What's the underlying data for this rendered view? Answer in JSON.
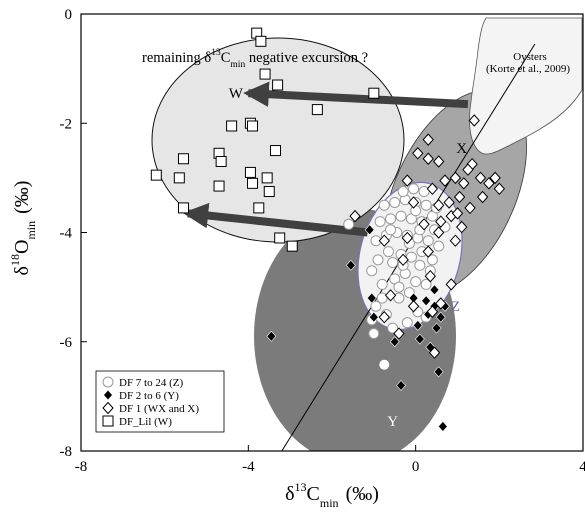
{
  "chart_data": {
    "type": "scatter",
    "xlabel": {
      "main": "δ",
      "sup": "13",
      "mid": "C",
      "sub": "min",
      "unit": "(‰)"
    },
    "ylabel": {
      "main": "δ",
      "sup": "18",
      "mid": "O",
      "sub": "min",
      "unit": "(‰)"
    },
    "xlim": [
      -8,
      4
    ],
    "ylim": [
      -8,
      0
    ],
    "xticks": [
      -8,
      -4,
      0,
      4
    ],
    "yticks": [
      0,
      -2,
      -4,
      -6,
      -8
    ],
    "xtick_labels": [
      "-8",
      "-4",
      "0",
      "4"
    ],
    "ytick_labels": [
      "0",
      "-2",
      "-4",
      "-6",
      "-8"
    ],
    "grid": false,
    "legend_position": "bottom-left",
    "colors": {
      "ellipse_W": "#e6e6e6",
      "ellipse_X": "#a6a6a6",
      "ellipse_Y": "#7b7b7b",
      "ellipse_Z": "#f2f2f2",
      "ellipse_Z_stroke": "#7b74b8",
      "oysters": "#f4f4f4",
      "arrow": "#404040"
    },
    "regions": [
      {
        "label": "W",
        "label_xy": [
          -4.3,
          -1.45
        ],
        "label_color": "#000000"
      },
      {
        "label": "X",
        "label_xy": [
          1.1,
          -2.45
        ],
        "label_color": "#000000"
      },
      {
        "label": "Y",
        "label_xy": [
          -0.55,
          -7.45
        ],
        "label_color": "#ffffff"
      },
      {
        "label": "Z",
        "label_xy": [
          0.95,
          -5.35
        ],
        "label_color": "#6a62b0"
      }
    ],
    "annotations": {
      "oysters_line1": "Oysters",
      "oysters_line2": "(Korte et al., 2009)",
      "excursion": {
        "pre": "remaining δ",
        "sup": "13",
        "mid": "C",
        "sub": "min",
        "post": " negative excursion ?"
      }
    },
    "arrows": [
      {
        "from": [
          1.25,
          -1.65
        ],
        "to": [
          -4.0,
          -1.45
        ]
      },
      {
        "from": [
          -1.15,
          -4.0
        ],
        "to": [
          -5.45,
          -3.65
        ]
      }
    ],
    "reference_line": {
      "from": [
        -3.2,
        -8.0
      ],
      "to": [
        2.85,
        -0.55
      ]
    },
    "series": [
      {
        "name": "DF 7 to 24 (Z)",
        "marker": "circle-open",
        "points": [
          [
            -1.0,
            -5.85
          ],
          [
            -1.05,
            -5.6
          ],
          [
            -0.95,
            -5.35
          ],
          [
            -0.7,
            -5.5
          ],
          [
            -0.55,
            -5.75
          ],
          [
            -0.4,
            -5.2
          ],
          [
            -0.2,
            -5.65
          ],
          [
            0.05,
            -5.45
          ],
          [
            0.25,
            -5.55
          ],
          [
            -0.8,
            -4.95
          ],
          [
            -0.5,
            -4.85
          ],
          [
            -0.25,
            -4.75
          ],
          [
            0.0,
            -4.9
          ],
          [
            0.25,
            -4.95
          ],
          [
            -1.05,
            -4.7
          ],
          [
            -0.9,
            -4.5
          ],
          [
            -0.65,
            -4.35
          ],
          [
            -0.35,
            -4.4
          ],
          [
            -0.1,
            -4.45
          ],
          [
            0.15,
            -4.35
          ],
          [
            0.4,
            -4.5
          ],
          [
            -0.95,
            -4.15
          ],
          [
            -0.7,
            -4.05
          ],
          [
            -0.45,
            -4.0
          ],
          [
            -0.2,
            -4.05
          ],
          [
            0.05,
            -4.1
          ],
          [
            0.3,
            -4.15
          ],
          [
            0.55,
            -4.25
          ],
          [
            -0.85,
            -3.8
          ],
          [
            -0.6,
            -3.75
          ],
          [
            -0.35,
            -3.7
          ],
          [
            -0.1,
            -3.75
          ],
          [
            0.15,
            -3.8
          ],
          [
            0.4,
            -3.7
          ],
          [
            -0.75,
            -3.5
          ],
          [
            -0.5,
            -3.45
          ],
          [
            -0.25,
            -3.4
          ],
          [
            0.0,
            -3.45
          ],
          [
            0.25,
            -3.5
          ],
          [
            0.5,
            -3.55
          ],
          [
            0.7,
            -3.9
          ],
          [
            -0.3,
            -3.25
          ],
          [
            -0.05,
            -3.2
          ],
          [
            0.2,
            -3.25
          ],
          [
            -1.6,
            -3.85
          ],
          [
            -0.15,
            -4.2
          ],
          [
            0.1,
            -4.6
          ],
          [
            -0.55,
            -4.55
          ],
          [
            0.45,
            -3.95
          ],
          [
            -0.4,
            -5.0
          ],
          [
            -0.15,
            -5.1
          ],
          [
            0.35,
            -4.7
          ],
          [
            -0.6,
            -3.95
          ],
          [
            0.1,
            -3.95
          ],
          [
            -0.8,
            -5.2
          ],
          [
            0.0,
            -3.6
          ],
          [
            -0.3,
            -4.6
          ]
        ]
      },
      {
        "name": "DF 2 to 6 (Y)",
        "marker": "diamond-filled",
        "points": [
          [
            -3.45,
            -5.9
          ],
          [
            -1.1,
            -3.95
          ],
          [
            -1.55,
            -4.6
          ],
          [
            -1.05,
            -5.2
          ],
          [
            -1.0,
            -5.55
          ],
          [
            -0.5,
            -6.0
          ],
          [
            -0.35,
            -6.8
          ],
          [
            -0.05,
            -5.2
          ],
          [
            0.05,
            -5.7
          ],
          [
            0.1,
            -5.95
          ],
          [
            0.25,
            -5.25
          ],
          [
            0.3,
            -5.5
          ],
          [
            0.35,
            -6.1
          ],
          [
            0.45,
            -5.05
          ],
          [
            0.45,
            -5.35
          ],
          [
            0.5,
            -5.75
          ],
          [
            0.6,
            -5.55
          ],
          [
            0.7,
            -5.35
          ],
          [
            0.55,
            -6.55
          ],
          [
            0.65,
            -7.55
          ]
        ]
      },
      {
        "name": "DF 1 (WX and X)",
        "marker": "diamond-open",
        "points": [
          [
            0.3,
            -2.3
          ],
          [
            0.3,
            -2.65
          ],
          [
            0.05,
            -2.55
          ],
          [
            0.55,
            -2.7
          ],
          [
            -0.2,
            -3.05
          ],
          [
            0.4,
            -3.2
          ],
          [
            0.7,
            -3.05
          ],
          [
            0.95,
            -3.0
          ],
          [
            1.15,
            -3.1
          ],
          [
            1.35,
            -2.75
          ],
          [
            1.4,
            -1.95
          ],
          [
            1.25,
            -2.85
          ],
          [
            1.55,
            -3.0
          ],
          [
            1.6,
            -3.35
          ],
          [
            1.9,
            -3.0
          ],
          [
            2.0,
            -3.2
          ],
          [
            1.75,
            -3.1
          ],
          [
            -0.05,
            -3.45
          ],
          [
            0.55,
            -3.5
          ],
          [
            0.8,
            -3.45
          ],
          [
            1.05,
            -3.35
          ],
          [
            1.3,
            -3.55
          ],
          [
            0.6,
            -3.8
          ],
          [
            0.85,
            -3.7
          ],
          [
            1.1,
            -3.9
          ],
          [
            0.55,
            -4.0
          ],
          [
            0.3,
            -4.35
          ],
          [
            0.35,
            -4.8
          ],
          [
            0.85,
            -4.95
          ],
          [
            -1.45,
            -3.7
          ],
          [
            -0.75,
            -4.15
          ],
          [
            -0.3,
            -4.5
          ],
          [
            -0.6,
            -5.15
          ],
          [
            -0.75,
            -5.55
          ],
          [
            -0.05,
            -5.35
          ],
          [
            0.4,
            -5.45
          ],
          [
            0.6,
            -5.3
          ],
          [
            -0.4,
            -5.85
          ],
          [
            0.45,
            -6.2
          ],
          [
            1.0,
            -3.65
          ],
          [
            0.2,
            -3.85
          ],
          [
            -0.2,
            -4.1
          ],
          [
            0.95,
            -4.15
          ]
        ]
      },
      {
        "name": "DF_Lil (W)",
        "marker": "square-open",
        "points": [
          [
            -3.8,
            -0.35
          ],
          [
            -3.7,
            -0.5
          ],
          [
            -3.6,
            -1.1
          ],
          [
            -3.3,
            -1.3
          ],
          [
            -2.35,
            -1.75
          ],
          [
            -1.0,
            -1.45
          ],
          [
            -4.4,
            -2.05
          ],
          [
            -3.95,
            -2.0
          ],
          [
            -3.9,
            -2.05
          ],
          [
            -5.55,
            -2.65
          ],
          [
            -4.7,
            -2.55
          ],
          [
            -4.65,
            -2.7
          ],
          [
            -6.2,
            -2.95
          ],
          [
            -5.65,
            -3.0
          ],
          [
            -4.7,
            -3.15
          ],
          [
            -3.95,
            -2.9
          ],
          [
            -3.9,
            -3.1
          ],
          [
            -3.55,
            -3.0
          ],
          [
            -3.5,
            -3.25
          ],
          [
            -3.35,
            -2.5
          ],
          [
            -3.75,
            -3.55
          ],
          [
            -5.55,
            -3.55
          ],
          [
            -3.25,
            -4.1
          ],
          [
            -2.95,
            -4.25
          ]
        ]
      }
    ],
    "legend": {
      "items": [
        {
          "marker": "circle-open",
          "label": "DF 7 to 24 (Z)"
        },
        {
          "marker": "diamond-filled",
          "label": "DF 2 to 6 (Y)"
        },
        {
          "marker": "diamond-open",
          "label": "DF 1 (WX and X)"
        },
        {
          "marker": "square-open",
          "label": "DF_Lil (W)"
        }
      ]
    }
  }
}
